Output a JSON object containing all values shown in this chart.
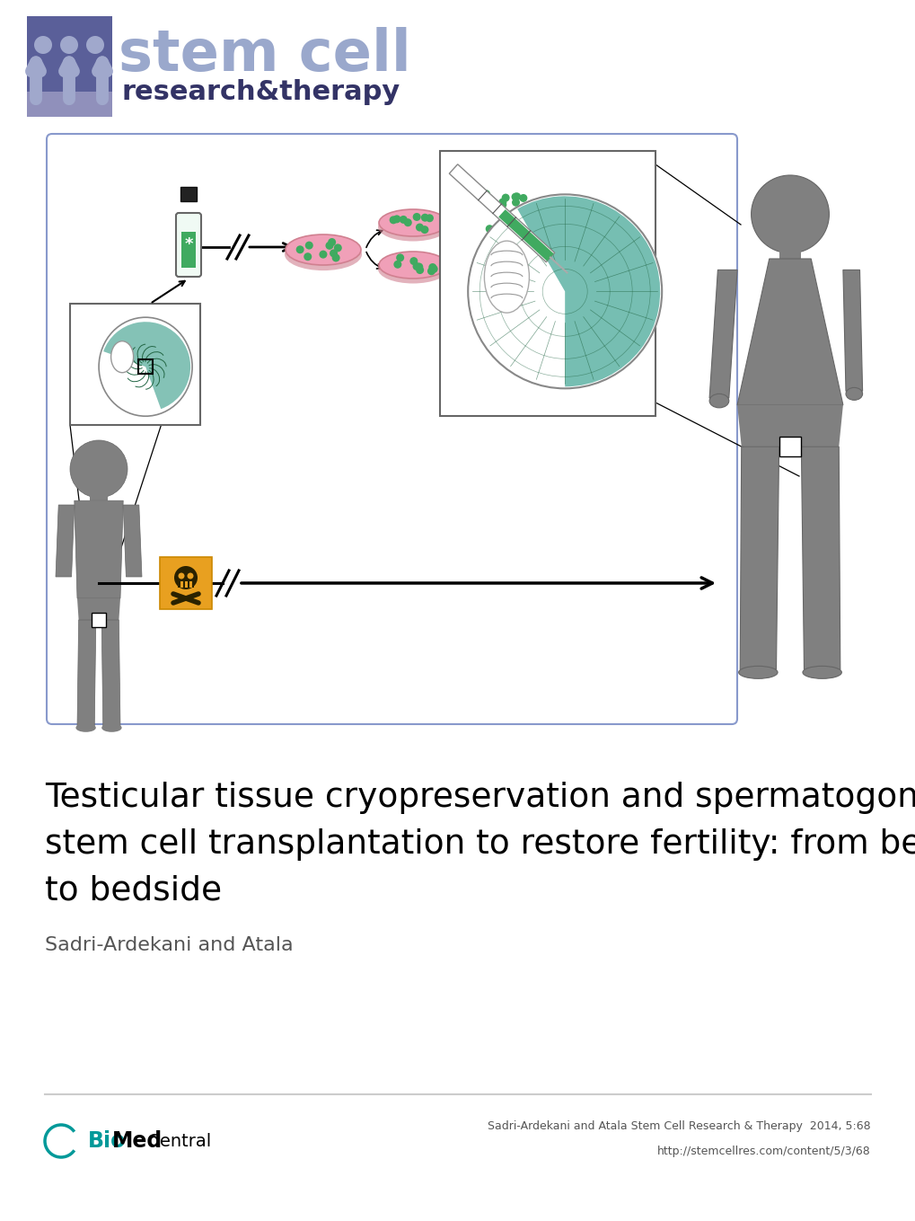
{
  "title_line1": "Testicular tissue cryopreservation and spermatogonial",
  "title_line2": "stem cell transplantation to restore fertility: from bench",
  "title_line3": "to bedside",
  "authors": "Sadri-Ardekani and Atala",
  "footer_right_line1": "Sadri-Ardekani and Atala Stem Cell Research & Therapy  2014, 5:68",
  "footer_right_line2": "http://stemcellres.com/content/5/3/68",
  "logo_box_dark": "#5a5f99",
  "logo_box_light": "#9090bb",
  "logo_fig_color": "#a0a8cc",
  "logo_text_large": "#9aa8cc",
  "logo_text_small": "#333366",
  "biomed_teal": "#009999",
  "biomed_black": "#000000",
  "diagram_border": "#8899cc",
  "bg_white": "#ffffff",
  "gray_human": "#808080",
  "gray_human_dark": "#666666",
  "pink_dish": "#f0a0b8",
  "pink_dish_dark": "#d08090",
  "green_cells": "#40aa60",
  "green_teal": "#30a080",
  "arrow_black": "#111111",
  "hazard_orange": "#e8a020",
  "tissue_line": "#888888",
  "inset_bg": "#f5f5f0",
  "vial_green": "#40aa60",
  "vial_dark": "#228855"
}
